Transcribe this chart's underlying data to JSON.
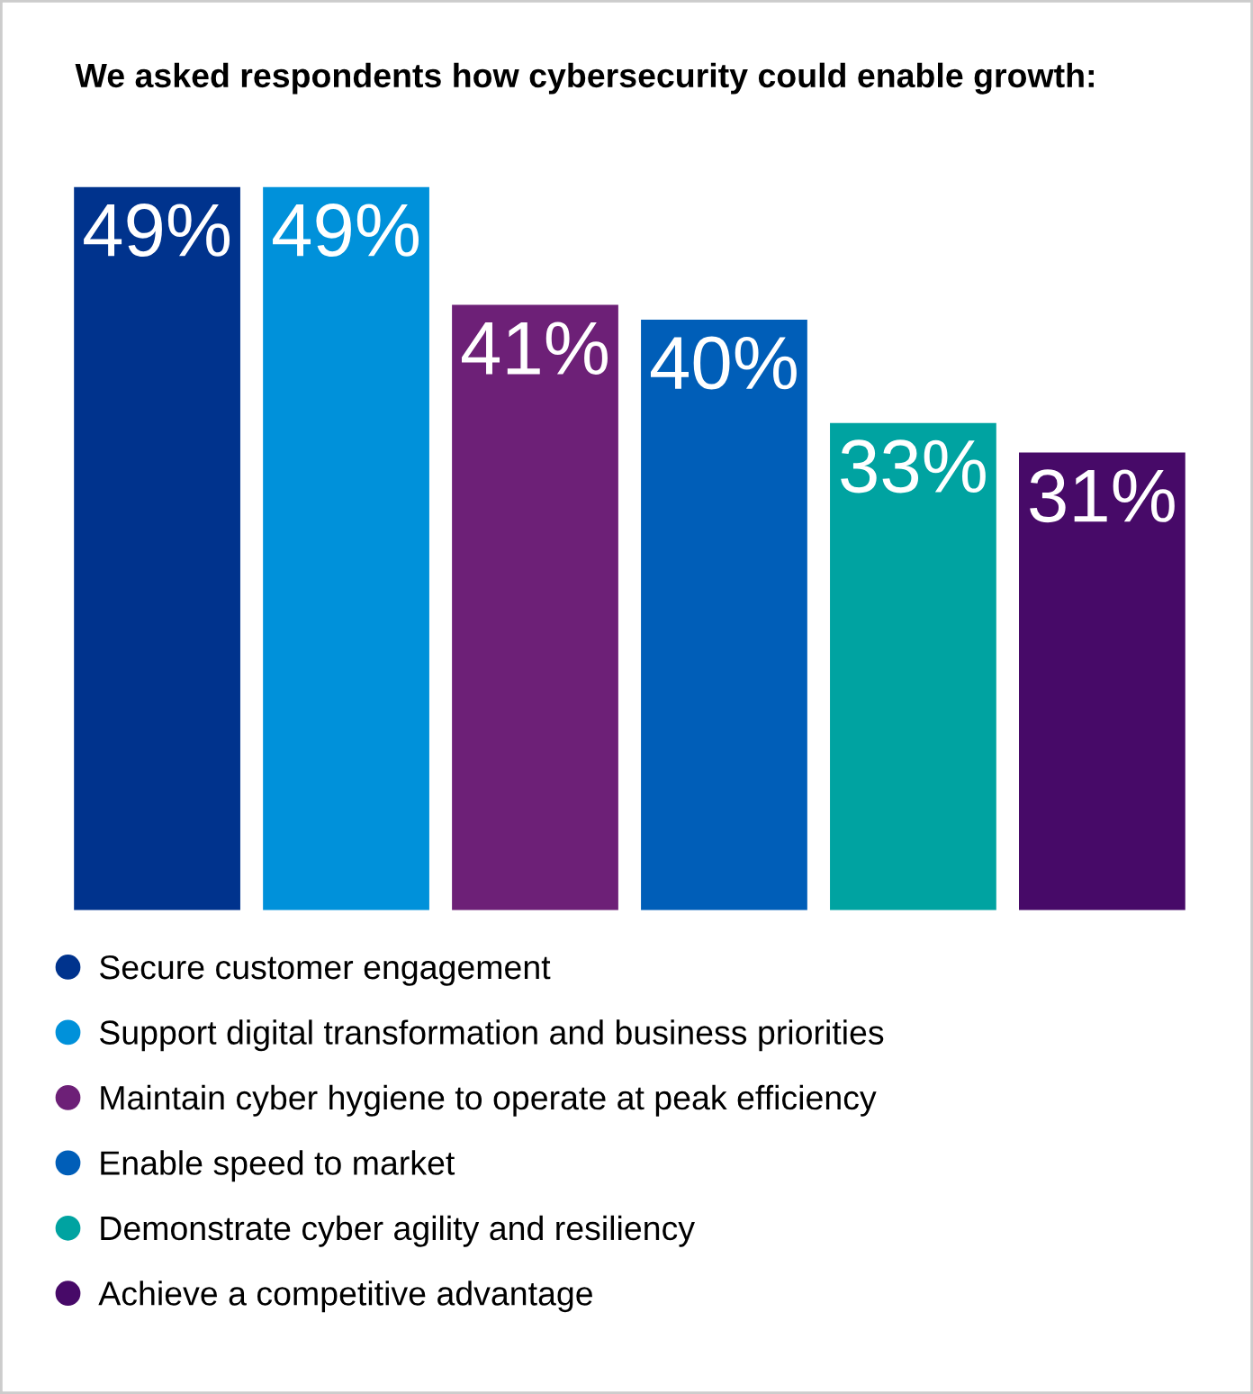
{
  "chart_data": {
    "type": "bar",
    "title": "We asked respondents how cybersecurity could enable growth:",
    "categories": [
      null,
      null,
      null,
      null,
      null,
      null
    ],
    "series": [
      {
        "name": "Secure customer engagement",
        "color": "#00338d",
        "values": [
          49,
          null,
          null,
          null,
          null,
          null
        ],
        "value_labels": [
          "49%",
          null,
          null,
          null,
          null,
          null
        ]
      },
      {
        "name": "Support digital transformation and business priorities",
        "color": "#0091da",
        "values": [
          null,
          49,
          null,
          null,
          null,
          null
        ],
        "value_labels": [
          null,
          "49%",
          null,
          null,
          null,
          null
        ]
      },
      {
        "name": "Maintain cyber hygiene to operate at peak efficiency",
        "color": "#6d2077",
        "values": [
          null,
          null,
          41,
          null,
          null,
          null
        ],
        "value_labels": [
          null,
          null,
          "41%",
          null,
          null,
          null
        ]
      },
      {
        "name": "Enable speed to market",
        "color": "#005eb8",
        "values": [
          null,
          null,
          null,
          40,
          null,
          null
        ],
        "value_labels": [
          null,
          null,
          null,
          "40%",
          null,
          null
        ]
      },
      {
        "name": "Demonstrate cyber agility and resiliency",
        "color": "#00a3a1",
        "values": [
          null,
          null,
          null,
          null,
          33,
          null
        ],
        "value_labels": [
          null,
          null,
          null,
          null,
          "33%",
          null
        ]
      },
      {
        "name": "Achieve a competitive advantage",
        "color": "#470a68",
        "values": [
          null,
          null,
          null,
          null,
          null,
          31
        ],
        "value_labels": [
          null,
          null,
          null,
          null,
          null,
          "31%"
        ]
      }
    ],
    "stacked": true,
    "legend": "bottom"
  }
}
